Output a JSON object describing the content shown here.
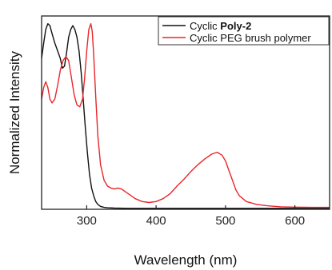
{
  "chart_data": {
    "type": "line",
    "xlabel": "Wavelength (nm)",
    "ylabel": "Normalized Intensity",
    "xlim": [
      235,
      650
    ],
    "ylim": [
      0,
      1.0
    ],
    "x_ticks": [
      300,
      400,
      500,
      600
    ],
    "y_ticks_shown": false,
    "grid": false,
    "legend": {
      "placement": "top-right"
    },
    "series": [
      {
        "name": "Cyclic Poly-2",
        "name_prefix": "Cyclic ",
        "name_bold": "Poly-2",
        "color": "#111111",
        "points": [
          [
            235,
            0.78
          ],
          [
            238,
            0.86
          ],
          [
            241,
            0.93
          ],
          [
            244,
            0.96
          ],
          [
            247,
            0.95
          ],
          [
            250,
            0.91
          ],
          [
            254,
            0.86
          ],
          [
            258,
            0.82
          ],
          [
            262,
            0.78
          ],
          [
            265,
            0.73
          ],
          [
            268,
            0.74
          ],
          [
            271,
            0.81
          ],
          [
            274,
            0.89
          ],
          [
            277,
            0.93
          ],
          [
            280,
            0.95
          ],
          [
            283,
            0.93
          ],
          [
            286,
            0.89
          ],
          [
            289,
            0.82
          ],
          [
            292,
            0.71
          ],
          [
            295,
            0.57
          ],
          [
            298,
            0.42
          ],
          [
            301,
            0.29
          ],
          [
            304,
            0.18
          ],
          [
            307,
            0.11
          ],
          [
            310,
            0.07
          ],
          [
            313,
            0.04
          ],
          [
            316,
            0.025
          ],
          [
            320,
            0.015
          ],
          [
            325,
            0.01
          ],
          [
            330,
            0.008
          ],
          [
            340,
            0.006
          ],
          [
            360,
            0.005
          ],
          [
            400,
            0.005
          ],
          [
            450,
            0.005
          ],
          [
            500,
            0.005
          ],
          [
            550,
            0.005
          ],
          [
            600,
            0.005
          ],
          [
            650,
            0.005
          ]
        ]
      },
      {
        "name": "Cyclic PEG brush polymer",
        "color": "#e8262a",
        "points": [
          [
            235,
            0.57
          ],
          [
            238,
            0.63
          ],
          [
            241,
            0.66
          ],
          [
            244,
            0.63
          ],
          [
            247,
            0.57
          ],
          [
            250,
            0.55
          ],
          [
            254,
            0.57
          ],
          [
            258,
            0.64
          ],
          [
            262,
            0.72
          ],
          [
            266,
            0.77
          ],
          [
            270,
            0.79
          ],
          [
            274,
            0.77
          ],
          [
            278,
            0.68
          ],
          [
            282,
            0.59
          ],
          [
            286,
            0.54
          ],
          [
            290,
            0.53
          ],
          [
            294,
            0.57
          ],
          [
            297,
            0.68
          ],
          [
            300,
            0.82
          ],
          [
            303,
            0.93
          ],
          [
            306,
            0.96
          ],
          [
            308,
            0.92
          ],
          [
            310,
            0.8
          ],
          [
            313,
            0.58
          ],
          [
            316,
            0.38
          ],
          [
            320,
            0.23
          ],
          [
            325,
            0.15
          ],
          [
            330,
            0.12
          ],
          [
            335,
            0.11
          ],
          [
            340,
            0.105
          ],
          [
            345,
            0.11
          ],
          [
            350,
            0.105
          ],
          [
            360,
            0.08
          ],
          [
            370,
            0.055
          ],
          [
            380,
            0.04
          ],
          [
            390,
            0.035
          ],
          [
            400,
            0.04
          ],
          [
            410,
            0.055
          ],
          [
            420,
            0.08
          ],
          [
            430,
            0.12
          ],
          [
            440,
            0.155
          ],
          [
            450,
            0.195
          ],
          [
            460,
            0.23
          ],
          [
            470,
            0.26
          ],
          [
            480,
            0.285
          ],
          [
            488,
            0.295
          ],
          [
            495,
            0.28
          ],
          [
            500,
            0.25
          ],
          [
            505,
            0.2
          ],
          [
            510,
            0.15
          ],
          [
            515,
            0.1
          ],
          [
            520,
            0.07
          ],
          [
            530,
            0.04
          ],
          [
            545,
            0.025
          ],
          [
            560,
            0.018
          ],
          [
            580,
            0.013
          ],
          [
            600,
            0.011
          ],
          [
            625,
            0.01
          ],
          [
            650,
            0.01
          ]
        ]
      }
    ]
  }
}
